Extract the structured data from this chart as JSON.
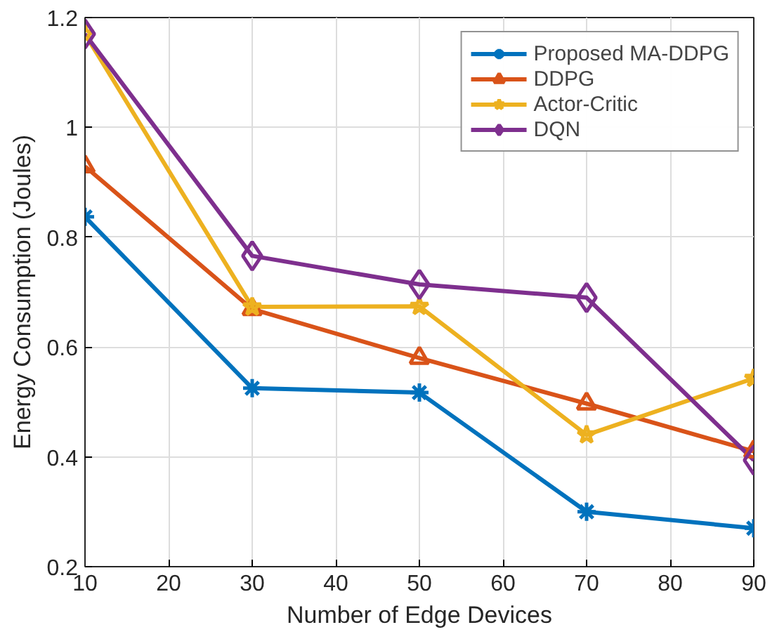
{
  "chart_data": {
    "type": "line",
    "xlabel": "Number of Edge Devices",
    "ylabel": "Energy Consumption (Joules)",
    "x": [
      10,
      30,
      50,
      70,
      90
    ],
    "series": [
      {
        "name": "Proposed MA-DDPG",
        "color": "#0072bd",
        "marker": "cross",
        "values": [
          0.837,
          0.525,
          0.517,
          0.3,
          0.27
        ]
      },
      {
        "name": "DDPG",
        "color": "#d95319",
        "marker": "triangle",
        "values": [
          0.929,
          0.669,
          0.58,
          0.497,
          0.41
        ]
      },
      {
        "name": "Actor-Critic",
        "color": "#edb120",
        "marker": "star",
        "values": [
          1.17,
          0.673,
          0.674,
          0.44,
          0.543
        ]
      },
      {
        "name": "DQN",
        "color": "#7e2f8e",
        "marker": "diamond",
        "values": [
          1.17,
          0.766,
          0.714,
          0.69,
          0.394
        ]
      }
    ],
    "xlim": [
      10,
      90
    ],
    "ylim": [
      0.2,
      1.2
    ],
    "xticks": [
      10,
      20,
      30,
      40,
      50,
      60,
      70,
      80,
      90
    ],
    "yticks": [
      0.2,
      0.4,
      0.6,
      0.8,
      {
        "value": 1,
        "label": "1"
      },
      1.2
    ],
    "grid": true,
    "legend": "top right",
    "line_style": "solid"
  }
}
